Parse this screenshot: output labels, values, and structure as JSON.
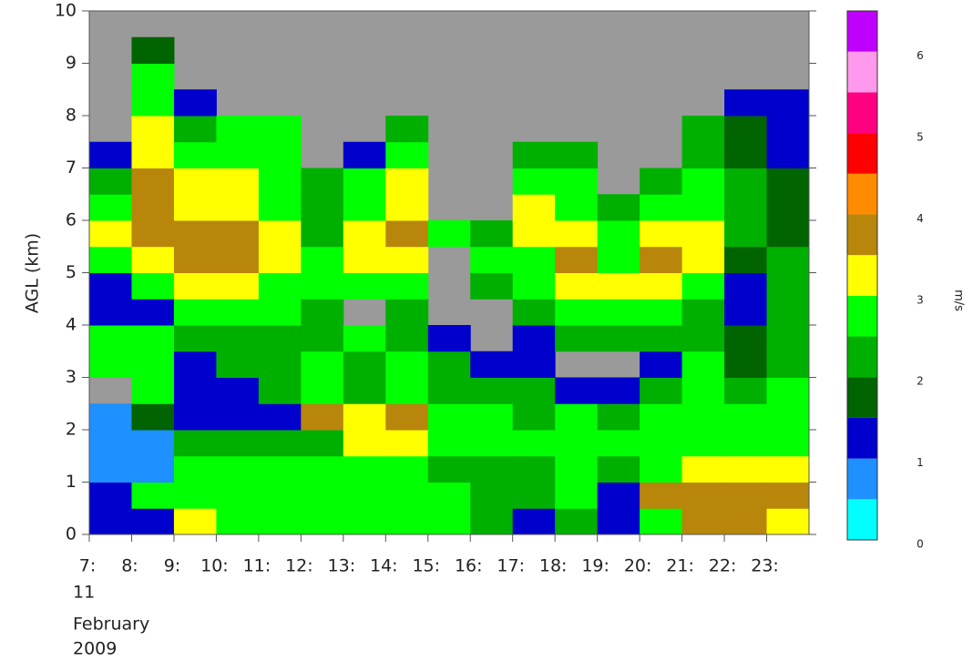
{
  "chart_data": {
    "type": "heatmap",
    "ylabel": "AGL (km)",
    "date_lines": [
      "11",
      "February",
      "2009"
    ],
    "xlim": [
      7,
      24
    ],
    "xticks": [
      {
        "value": 7,
        "label": "7:"
      },
      {
        "value": 8,
        "label": "8:"
      },
      {
        "value": 9,
        "label": "9:"
      },
      {
        "value": 10,
        "label": "10:"
      },
      {
        "value": 11,
        "label": "11:"
      },
      {
        "value": 12,
        "label": "12:"
      },
      {
        "value": 13,
        "label": "13:"
      },
      {
        "value": 14,
        "label": "14:"
      },
      {
        "value": 15,
        "label": "15:"
      },
      {
        "value": 16,
        "label": "16:"
      },
      {
        "value": 17,
        "label": "17:"
      },
      {
        "value": 18,
        "label": "18:"
      },
      {
        "value": 19,
        "label": "19:"
      },
      {
        "value": 20,
        "label": "20:"
      },
      {
        "value": 21,
        "label": "21:"
      },
      {
        "value": 22,
        "label": "22:"
      },
      {
        "value": 23,
        "label": "23:"
      }
    ],
    "ylim": [
      0,
      10
    ],
    "yticks": [
      0,
      1,
      2,
      3,
      4,
      5,
      6,
      7,
      8,
      9,
      10
    ],
    "x_edges": [
      7,
      8,
      9,
      10,
      11,
      12,
      13,
      14,
      15,
      16,
      17,
      18,
      19,
      20,
      21,
      22,
      23,
      24
    ],
    "y_edges": [
      0,
      0.5,
      1,
      1.5,
      2,
      2.5,
      3,
      3.5,
      4,
      4.5,
      5,
      5.5,
      6,
      6.5,
      7,
      7.5,
      8,
      8.5,
      9,
      9.5,
      10
    ],
    "z": [
      [
        1.2,
        1.2,
        0.8,
        0.8,
        0.8,
        null,
        2.8,
        2.8,
        1.2,
        1.2,
        2.8,
        3.2,
        2.8,
        2.2,
        1.2,
        null,
        null,
        null,
        null,
        null
      ],
      [
        1.2,
        2.8,
        0.8,
        0.8,
        1.8,
        2.8,
        2.8,
        2.8,
        1.2,
        2.8,
        3.2,
        3.7,
        3.7,
        3.7,
        3.2,
        3.2,
        2.8,
        2.8,
        1.8,
        null
      ],
      [
        3.2,
        2.8,
        2.8,
        2.2,
        1.2,
        1.2,
        1.2,
        2.2,
        2.8,
        3.2,
        3.7,
        3.7,
        3.2,
        3.2,
        2.8,
        2.2,
        1.2,
        null,
        null,
        null
      ],
      [
        2.8,
        2.8,
        2.8,
        2.2,
        1.2,
        1.2,
        2.2,
        2.2,
        2.8,
        3.2,
        3.7,
        3.7,
        3.2,
        3.2,
        2.8,
        2.8,
        null,
        null,
        null,
        null
      ],
      [
        2.8,
        2.8,
        2.8,
        2.2,
        1.2,
        2.2,
        2.2,
        2.2,
        2.8,
        2.8,
        3.2,
        3.2,
        2.8,
        2.8,
        2.8,
        2.8,
        null,
        null,
        null,
        null
      ],
      [
        2.8,
        2.8,
        2.8,
        2.2,
        3.7,
        2.8,
        2.8,
        2.2,
        2.2,
        2.8,
        2.8,
        2.2,
        2.2,
        2.2,
        null,
        null,
        null,
        null,
        null,
        null
      ],
      [
        2.8,
        2.8,
        2.8,
        3.2,
        3.2,
        2.2,
        2.2,
        2.8,
        null,
        2.8,
        3.2,
        3.2,
        2.8,
        2.8,
        1.2,
        null,
        null,
        null,
        null,
        null
      ],
      [
        2.8,
        2.8,
        2.8,
        3.2,
        3.7,
        2.8,
        2.8,
        2.2,
        2.2,
        2.8,
        3.2,
        3.7,
        3.2,
        3.2,
        2.8,
        2.2,
        null,
        null,
        null,
        null
      ],
      [
        2.8,
        2.8,
        2.2,
        2.8,
        2.8,
        2.2,
        2.2,
        1.2,
        null,
        null,
        null,
        2.8,
        null,
        null,
        null,
        null,
        null,
        null,
        null,
        null
      ],
      [
        2.2,
        2.2,
        2.2,
        2.8,
        2.8,
        2.2,
        1.2,
        null,
        null,
        2.2,
        2.8,
        2.2,
        null,
        null,
        null,
        null,
        null,
        null,
        null,
        null
      ],
      [
        1.2,
        2.2,
        2.2,
        2.8,
        2.2,
        2.2,
        1.2,
        1.2,
        2.2,
        2.8,
        2.8,
        3.2,
        3.2,
        2.8,
        2.2,
        null,
        null,
        null,
        null,
        null
      ],
      [
        2.2,
        2.8,
        2.8,
        2.8,
        2.8,
        1.2,
        null,
        2.2,
        2.8,
        3.2,
        3.7,
        3.2,
        2.8,
        2.8,
        2.2,
        null,
        null,
        null,
        null,
        null
      ],
      [
        1.2,
        1.2,
        2.2,
        2.8,
        2.2,
        1.2,
        null,
        2.2,
        2.8,
        3.2,
        2.8,
        2.8,
        2.2,
        null,
        null,
        null,
        null,
        null,
        null,
        null
      ],
      [
        2.8,
        3.7,
        2.8,
        2.8,
        2.8,
        2.2,
        1.2,
        2.2,
        2.8,
        3.2,
        3.7,
        3.2,
        2.8,
        2.2,
        null,
        null,
        null,
        null,
        null,
        null
      ],
      [
        3.7,
        3.7,
        3.2,
        2.8,
        2.8,
        2.8,
        2.8,
        2.2,
        2.2,
        2.8,
        3.2,
        3.2,
        2.8,
        2.8,
        2.2,
        2.2,
        null,
        null,
        null,
        null
      ],
      [
        3.7,
        3.7,
        3.2,
        2.8,
        2.8,
        2.2,
        1.8,
        1.8,
        1.2,
        1.2,
        1.8,
        2.2,
        2.2,
        2.2,
        1.8,
        1.8,
        1.2,
        null,
        null,
        null
      ],
      [
        3.2,
        3.7,
        3.2,
        2.8,
        2.8,
        2.8,
        2.2,
        2.2,
        2.2,
        2.2,
        2.2,
        1.8,
        1.8,
        1.8,
        1.2,
        1.2,
        1.2,
        null,
        null,
        null
      ]
    ],
    "colorbar": {
      "label": "m/s",
      "levels": [
        0,
        0.5,
        1,
        1.5,
        2,
        2.5,
        3,
        3.5,
        4,
        4.5,
        5,
        5.5,
        6,
        6.5
      ],
      "colors": [
        "#00ffff",
        "#1e90ff",
        "#0000cd",
        "#006400",
        "#00b000",
        "#00ff00",
        "#ffff00",
        "#b8860b",
        "#ff8c00",
        "#ff0000",
        "#ff0080",
        "#ff99ee",
        "#c000ff"
      ],
      "ticks": [
        0,
        1,
        2,
        3,
        4,
        5,
        6
      ]
    }
  }
}
